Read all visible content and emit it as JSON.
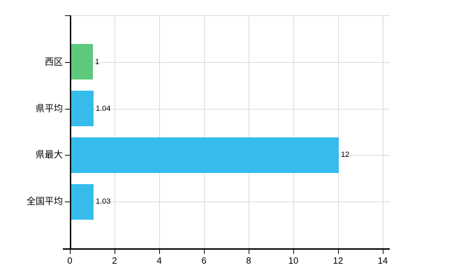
{
  "chart_data": {
    "type": "bar",
    "orientation": "horizontal",
    "title": "",
    "xlabel": "",
    "ylabel": "",
    "categories": [
      "西区",
      "県平均",
      "県最大",
      "全国平均"
    ],
    "values": [
      1,
      1.04,
      12,
      1.03
    ],
    "value_labels": [
      "1",
      "1.04",
      "12",
      "1.03"
    ],
    "bar_colors": [
      "#5ec87d",
      "#35bced",
      "#35bced",
      "#35bced"
    ],
    "xticks": [
      0,
      2,
      4,
      6,
      8,
      10,
      12,
      14
    ],
    "xlim": [
      0,
      14.3
    ],
    "grid": true,
    "legend": false,
    "grid_color": "#d9d9d9",
    "axis_color": "#000000",
    "text_color": "#000000",
    "background_color": "#ffffff"
  }
}
